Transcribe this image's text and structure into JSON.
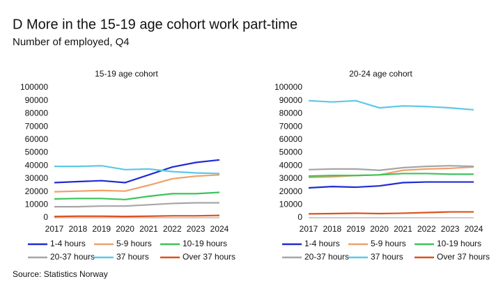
{
  "title": "D More in the 15-19 age cohort work part-time",
  "subtitle": "Number of employed, Q4",
  "source": "Source: Statistics Norway",
  "chart_data": [
    {
      "type": "line",
      "title": "15-19 age cohort",
      "categories": [
        "2017",
        "2018",
        "2019",
        "2020",
        "2021",
        "2022",
        "2023",
        "2024"
      ],
      "ylim": [
        0,
        100000
      ],
      "yticks": [
        0,
        10000,
        20000,
        30000,
        40000,
        50000,
        60000,
        70000,
        80000,
        90000,
        100000
      ],
      "grid": false,
      "legend": "bottom",
      "series": [
        {
          "name": "1-4 hours",
          "color": "#1f2bd1",
          "values": [
            27000,
            27800,
            28500,
            27000,
            33000,
            39000,
            42500,
            44500
          ]
        },
        {
          "name": "5-9 hours",
          "color": "#f0a06a",
          "values": [
            20000,
            20500,
            21000,
            20500,
            25000,
            30000,
            32000,
            33000
          ]
        },
        {
          "name": "10-19 hours",
          "color": "#3cc35a",
          "values": [
            14500,
            14800,
            14800,
            14000,
            16500,
            18500,
            18500,
            19500
          ]
        },
        {
          "name": "20-37 hours",
          "color": "#a6a6a6",
          "values": [
            8500,
            8500,
            9000,
            9000,
            10000,
            11000,
            11500,
            11500
          ]
        },
        {
          "name": "37 hours",
          "color": "#5bc8e8",
          "values": [
            39500,
            39500,
            40000,
            37000,
            37500,
            35500,
            34500,
            34000
          ]
        },
        {
          "name": "Over 37 hours",
          "color": "#d9541e",
          "values": [
            1000,
            1200,
            1200,
            1000,
            1200,
            1500,
            1500,
            1800
          ]
        }
      ]
    },
    {
      "type": "line",
      "title": "20-24 age cohort",
      "categories": [
        "2017",
        "2018",
        "2019",
        "2020",
        "2021",
        "2022",
        "2023",
        "2024"
      ],
      "ylim": [
        0,
        100000
      ],
      "yticks": [
        0,
        10000,
        20000,
        30000,
        40000,
        50000,
        60000,
        70000,
        80000,
        90000,
        100000
      ],
      "grid": false,
      "legend": "bottom",
      "series": [
        {
          "name": "1-4 hours",
          "color": "#1f2bd1",
          "values": [
            23000,
            24000,
            23500,
            24500,
            27000,
            27500,
            27500,
            27500
          ]
        },
        {
          "name": "5-9 hours",
          "color": "#f0a06a",
          "values": [
            31000,
            31500,
            32500,
            33000,
            36500,
            37500,
            38000,
            39000
          ]
        },
        {
          "name": "10-19 hours",
          "color": "#3cc35a",
          "values": [
            32000,
            32500,
            32500,
            33000,
            34000,
            34000,
            33500,
            33500
          ]
        },
        {
          "name": "20-37 hours",
          "color": "#a6a6a6",
          "values": [
            37000,
            37500,
            37500,
            36500,
            38500,
            39500,
            40000,
            39500
          ]
        },
        {
          "name": "37 hours",
          "color": "#5bc8e8",
          "values": [
            90000,
            89000,
            90000,
            84500,
            86000,
            85500,
            84500,
            83000
          ]
        },
        {
          "name": "Over 37 hours",
          "color": "#d9541e",
          "values": [
            3000,
            3200,
            3500,
            3200,
            3500,
            4000,
            4500,
            4500
          ]
        }
      ]
    }
  ]
}
